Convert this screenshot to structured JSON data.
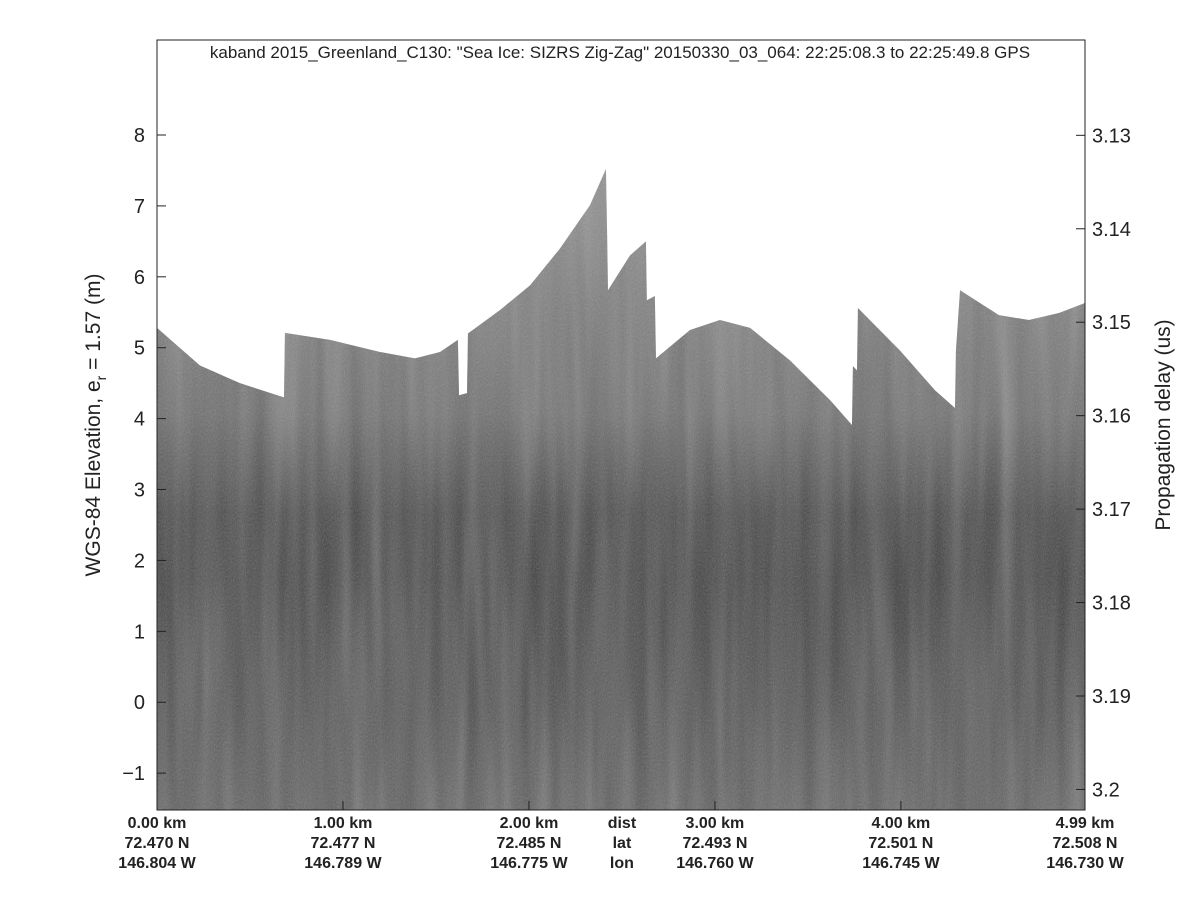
{
  "chart_data": {
    "type": "echogram",
    "title": "kaband 2015_Greenland_C130: \"Sea Ice: SIZRS Zig-Zag\"  20150330_03_064: 22:25:08.3 to 22:25:49.8 GPS",
    "ylabel": {
      "text": "WGS-84 Elevation, e",
      "subscript": "r",
      "after": " = 1.57 (m)"
    },
    "y2label": "Propagation delay (us)",
    "xlim": [
      0,
      4.99
    ],
    "xticks": [
      {
        "value": 0,
        "label": "0.00 km",
        "lat": "72.470 N",
        "lon": "146.804 W"
      },
      {
        "value": 1,
        "label": "1.00 km",
        "lat": "72.477 N",
        "lon": "146.789 W"
      },
      {
        "value": 2,
        "label": "2.00 km",
        "lat": "72.485 N",
        "lon": "146.775 W"
      },
      {
        "value": 3,
        "label": "3.00 km",
        "lat": "72.493 N",
        "lon": "146.760 W"
      },
      {
        "value": 4,
        "label": "4.00 km",
        "lat": "72.501 N",
        "lon": "146.745 W"
      },
      {
        "value": 4.99,
        "label": "4.99 km",
        "lat": "72.508 N",
        "lon": "146.730 W"
      }
    ],
    "x_row_names": [
      "dist",
      "lat",
      "lon"
    ],
    "ylim": [
      -1.52,
      9.34
    ],
    "yticks": [
      {
        "value": -1,
        "label": "−1"
      },
      0,
      1,
      2,
      3,
      4,
      5,
      6,
      7,
      8
    ],
    "y2lim": [
      3.2022,
      3.1198
    ],
    "y2ticks": [
      3.13,
      3.14,
      3.15,
      3.16,
      3.17,
      3.18,
      3.19,
      3.2
    ],
    "surface": {
      "x": [
        0,
        0.231,
        0.446,
        0.683,
        0.688,
        0.93,
        1.199,
        1.387,
        1.522,
        1.618,
        1.624,
        1.667,
        1.672,
        1.844,
        2.006,
        2.167,
        2.328,
        2.414,
        2.42,
        2.425,
        2.543,
        2.629,
        2.634,
        2.677,
        2.683,
        2.866,
        3.027,
        3.189,
        3.404,
        3.619,
        3.737,
        3.742,
        3.764,
        3.769,
        3.995,
        4.183,
        4.291,
        4.296,
        4.318,
        4.527,
        4.689,
        4.85,
        4.99
      ],
      "values": [
        5.28,
        4.75,
        4.5,
        4.3,
        5.21,
        5.11,
        4.94,
        4.85,
        4.94,
        5.11,
        4.33,
        4.36,
        5.2,
        5.53,
        5.88,
        6.4,
        7.01,
        7.52,
        6.66,
        5.81,
        6.3,
        6.5,
        5.67,
        5.73,
        4.85,
        5.25,
        5.39,
        5.28,
        4.82,
        4.26,
        3.91,
        4.74,
        4.68,
        5.56,
        4.96,
        4.4,
        4.15,
        4.96,
        5.81,
        5.46,
        5.39,
        5.49,
        5.63
      ]
    }
  }
}
